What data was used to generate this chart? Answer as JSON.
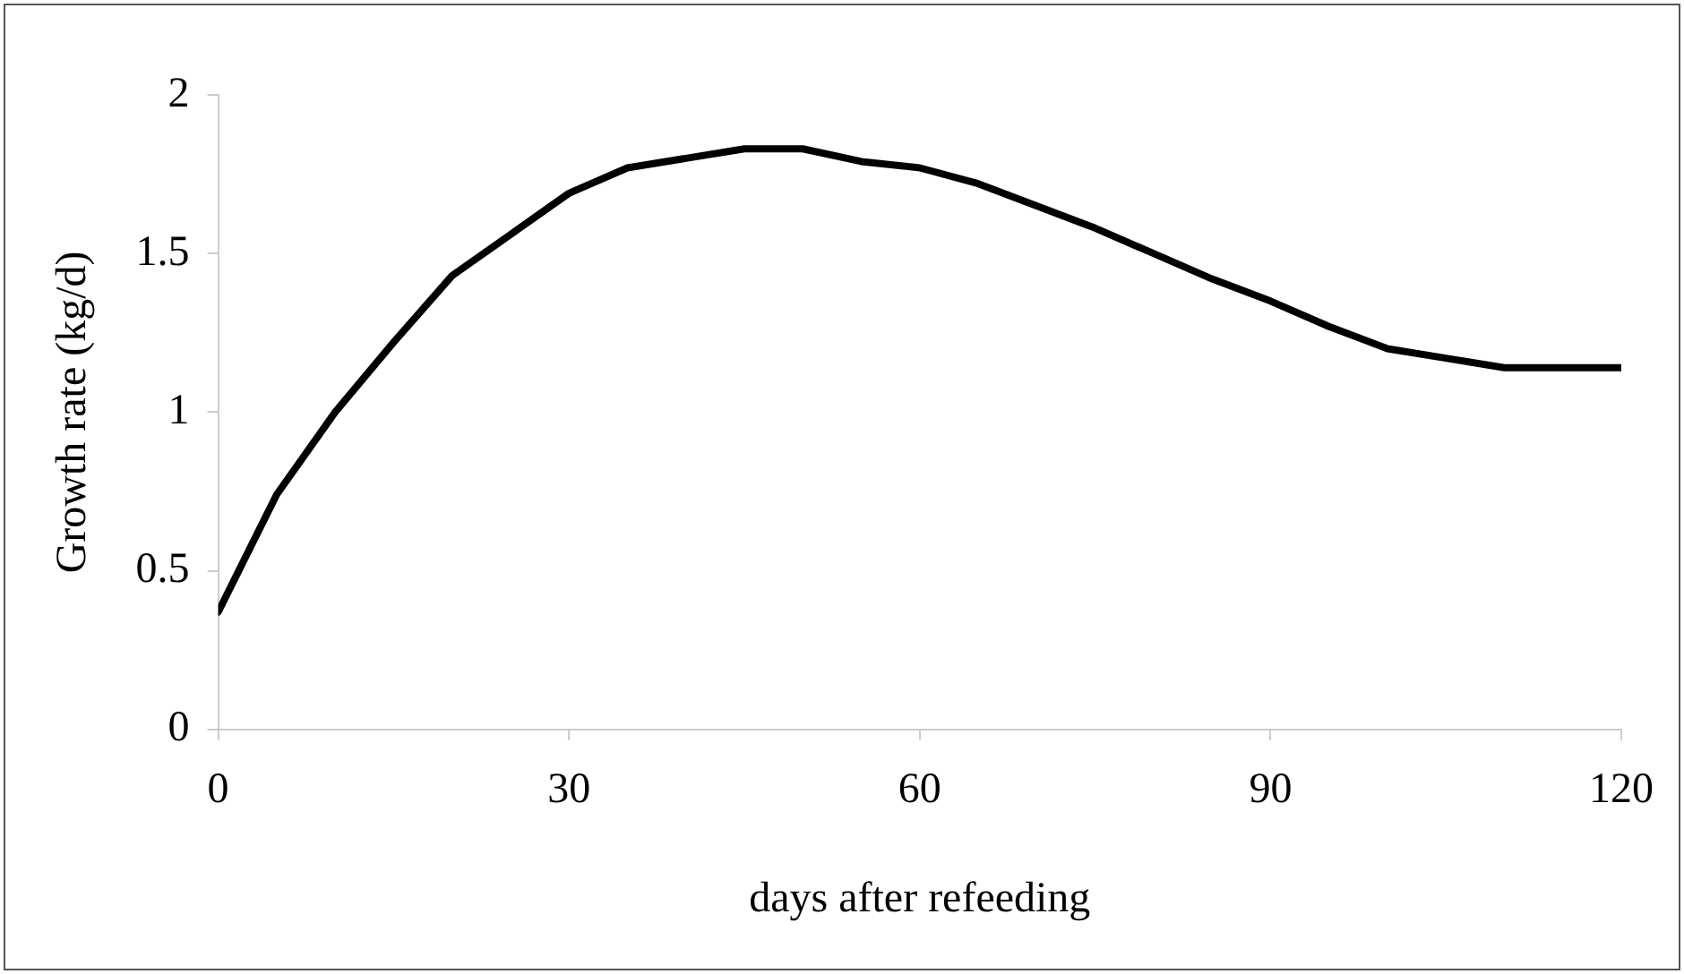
{
  "chart_data": {
    "type": "line",
    "xlabel": "days after refeeding",
    "ylabel": "Growth rate (kg/d)",
    "x": [
      0,
      5,
      10,
      15,
      20,
      25,
      30,
      35,
      40,
      45,
      50,
      55,
      60,
      65,
      70,
      75,
      80,
      85,
      90,
      95,
      100,
      105,
      110,
      115,
      120
    ],
    "series": [
      {
        "color": "#000000",
        "values": [
          0.37,
          0.74,
          1.0,
          1.22,
          1.43,
          1.56,
          1.69,
          1.77,
          1.8,
          1.83,
          1.83,
          1.79,
          1.77,
          1.72,
          1.65,
          1.58,
          1.5,
          1.42,
          1.35,
          1.27,
          1.2,
          1.17,
          1.14,
          1.14,
          1.14
        ]
      }
    ],
    "xlim": [
      0,
      120
    ],
    "xticks": [
      0,
      30,
      60,
      90,
      120
    ],
    "ylim": [
      0,
      2
    ],
    "yticks": [
      0,
      0.5,
      1,
      1.5,
      2
    ],
    "grid": false,
    "legend": false,
    "marker": "none",
    "line_style": "solid"
  }
}
